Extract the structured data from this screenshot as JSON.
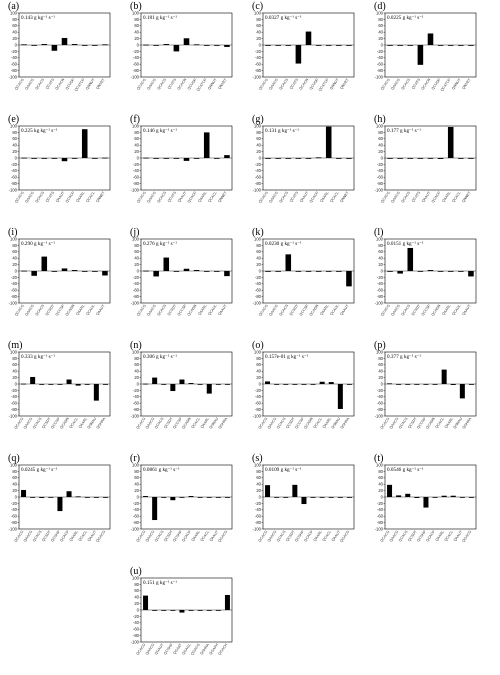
{
  "figure": {
    "y_ticks": [
      "100",
      "80",
      "60",
      "40",
      "20",
      "0",
      "-20",
      "-40",
      "-60",
      "-80",
      "-100"
    ],
    "ylim": [
      -100,
      100
    ]
  },
  "chart_data": [
    {
      "id": "a",
      "label": "(a)",
      "rate": "0.143 g kg⁻¹ s⁻¹",
      "type": "bar",
      "categories": [
        "QCACG",
        "QAACG",
        "QCACS",
        "QCATS",
        "QCACN",
        "QCVDP",
        "QCATCP",
        "QNNUT",
        "QNVET"
      ],
      "values": [
        2,
        0,
        3,
        -18,
        22,
        3,
        0,
        0,
        2
      ]
    },
    {
      "id": "b",
      "label": "(b)",
      "rate": "0.181 g kg⁻¹ s⁻¹",
      "type": "bar",
      "categories": [
        "QCACG",
        "QAACG",
        "QCACS",
        "QCATS",
        "QCACN",
        "QCVDP",
        "QCATCP",
        "QNNUT",
        "QNVET"
      ],
      "values": [
        1,
        0,
        3,
        -20,
        21,
        2,
        0,
        0,
        -6
      ]
    },
    {
      "id": "c",
      "label": "(c)",
      "rate": "0.0327 g kg⁻¹ s⁻¹",
      "type": "bar",
      "categories": [
        "QCACG",
        "QAACG",
        "QCACS",
        "QCATS",
        "QCACN",
        "QCVDP",
        "QCATCP",
        "QNNUT",
        "QNVET"
      ],
      "values": [
        0,
        0,
        0,
        -58,
        42,
        0,
        0,
        0,
        0
      ]
    },
    {
      "id": "d",
      "label": "(d)",
      "rate": "0.0225 g kg⁻¹ s⁻¹",
      "type": "bar",
      "categories": [
        "QCACG",
        "QAACG",
        "QCACS",
        "QCATS",
        "QCACN",
        "QCVDP",
        "QCATCP",
        "QNNUT",
        "QNVET"
      ],
      "values": [
        0,
        0,
        -2,
        -62,
        36,
        0,
        0,
        0,
        0
      ]
    },
    {
      "id": "e",
      "label": "(e)",
      "rate": "0.225 kg kg⁻¹ s⁻¹",
      "type": "bar",
      "categories": [
        "QCACG",
        "QAACG",
        "QCACS",
        "QCATS",
        "QAAUT",
        "QCACP",
        "QAARL",
        "QCACL",
        "QNNET"
      ],
      "values": [
        1,
        0,
        0,
        0,
        -10,
        0,
        90,
        0,
        1
      ]
    },
    {
      "id": "f",
      "label": "(f)",
      "rate": "0.146 g kg⁻¹ s⁻¹",
      "type": "bar",
      "categories": [
        "QCACG",
        "QAACG",
        "QCACS",
        "QCATS",
        "QAAUT",
        "QCACP",
        "QAARL",
        "QCACL",
        "QNNET"
      ],
      "values": [
        1,
        0,
        0,
        0,
        -9,
        0,
        80,
        0,
        9
      ]
    },
    {
      "id": "g",
      "label": "(g)",
      "rate": "0.131 g kg⁻¹ s⁻¹",
      "type": "bar",
      "categories": [
        "QCACG",
        "QAACG",
        "QCACS",
        "QCATS",
        "QAAUT",
        "QCACP",
        "QAARL",
        "QCACL",
        "QNNET"
      ],
      "values": [
        0,
        0,
        0,
        0,
        0,
        2,
        98,
        0,
        0
      ]
    },
    {
      "id": "h",
      "label": "(h)",
      "rate": "0.177 g kg⁻¹ s⁻¹",
      "type": "bar",
      "categories": [
        "QCACG",
        "QAACG",
        "QCACS",
        "QCATS",
        "QAAUT",
        "QCACP",
        "QAARL",
        "QCACL",
        "QNNET"
      ],
      "values": [
        0,
        0,
        0,
        0,
        0,
        -3,
        97,
        0,
        0
      ]
    },
    {
      "id": "i",
      "label": "(i)",
      "rate": "0.290 g kg⁻¹ s⁻¹",
      "type": "bar",
      "categories": [
        "QCACG",
        "QAACG",
        "QCACS",
        "QCSDT",
        "QCCSP",
        "QCADN",
        "QAARL",
        "QCAUL",
        "QAAUT"
      ],
      "values": [
        1,
        -15,
        45,
        0,
        8,
        3,
        -2,
        0,
        -14
      ]
    },
    {
      "id": "j",
      "label": "(j)",
      "rate": "0.276 g kg⁻¹ s⁻¹",
      "type": "bar",
      "categories": [
        "QCACG",
        "QAACG",
        "QCACS",
        "QCSDT",
        "QCCSP",
        "QCADN",
        "QAARL",
        "QCAUL",
        "QAAUT"
      ],
      "values": [
        1,
        -17,
        42,
        0,
        7,
        3,
        -2,
        0,
        -16
      ]
    },
    {
      "id": "k",
      "label": "(k)",
      "rate": "0.0230 g kg⁻¹ s⁻¹",
      "type": "bar",
      "categories": [
        "QCACG",
        "QAACG",
        "QCACS",
        "QCSDT",
        "QCCSP",
        "QCADN",
        "QAARL",
        "QCAUL",
        "QAAUT"
      ],
      "values": [
        0,
        0,
        52,
        0,
        0,
        0,
        0,
        0,
        -48
      ]
    },
    {
      "id": "l",
      "label": "(l)",
      "rate": "0.0151 g kg⁻¹ s⁻¹",
      "type": "bar",
      "categories": [
        "QCACG",
        "QAACG",
        "QCACS",
        "QCSDT",
        "QCCSP",
        "QCADN",
        "QAARL",
        "QCAUL",
        "QAAUT"
      ],
      "values": [
        0,
        -8,
        72,
        0,
        3,
        0,
        0,
        0,
        -17
      ]
    },
    {
      "id": "m",
      "label": "(m)",
      "rate": "0.333 g kg⁻¹ s⁻¹",
      "type": "bar",
      "categories": [
        "QCACG",
        "QAACG",
        "QCACS",
        "QCSDT",
        "QCCSP",
        "QCADN",
        "QCACL",
        "QAARL",
        "QSNAU",
        "QSHRA"
      ],
      "values": [
        1,
        22,
        0,
        0,
        0,
        14,
        -5,
        -2,
        -52,
        0
      ]
    },
    {
      "id": "n",
      "label": "(n)",
      "rate": "0.306 g kg⁻¹ s⁻¹",
      "type": "bar",
      "categories": [
        "QCACG",
        "QAACG",
        "QCACS",
        "QCSDT",
        "QCCSP",
        "QCADN",
        "QCACL",
        "QAARL",
        "QSNAU",
        "QSHRA"
      ],
      "values": [
        1,
        20,
        0,
        -22,
        14,
        3,
        -2,
        -30,
        0,
        0
      ]
    },
    {
      "id": "o",
      "label": "(o)",
      "rate": "0.157e-01 g kg⁻¹ s⁻¹",
      "type": "bar",
      "categories": [
        "QCACG",
        "QAACG",
        "QCACS",
        "QCSDT",
        "QCCSP",
        "QCADN",
        "QCACL",
        "QAARL",
        "QSNAU",
        "QSHRA"
      ],
      "values": [
        8,
        0,
        0,
        0,
        0,
        0,
        7,
        6,
        -78,
        0
      ]
    },
    {
      "id": "p",
      "label": "(p)",
      "rate": "0.377 g kg⁻¹ s⁻¹",
      "type": "bar",
      "categories": [
        "QCACG",
        "QAACG",
        "QCACS",
        "QCSDT",
        "QCCSP",
        "QCADN",
        "QCACL",
        "QAARL",
        "QSNAU",
        "QSHRA"
      ],
      "values": [
        2,
        0,
        0,
        0,
        0,
        0,
        45,
        -3,
        -45,
        0
      ]
    },
    {
      "id": "q",
      "label": "(q)",
      "rate": "0.0245 g kg⁻¹ s⁻¹",
      "type": "bar",
      "categories": [
        "QCACG",
        "QAACG",
        "QCACS",
        "QCSDT",
        "QCSHP",
        "QCACP",
        "QAARL",
        "QCACL",
        "QAAUT",
        "QGACG"
      ],
      "values": [
        22,
        0,
        -3,
        0,
        -44,
        18,
        2,
        0,
        0,
        0
      ]
    },
    {
      "id": "r",
      "label": "(r)",
      "rate": "0.0861 g kg⁻¹ s⁻¹",
      "type": "bar",
      "categories": [
        "QCACG",
        "QAACG",
        "QCACS",
        "QCSDT",
        "QCSHP",
        "QCACP",
        "QAARL",
        "QCACL",
        "QAAUT",
        "QGACG"
      ],
      "values": [
        3,
        -72,
        0,
        -10,
        0,
        3,
        0,
        0,
        0,
        0
      ]
    },
    {
      "id": "s",
      "label": "(s)",
      "rate": "0.0109 g kg⁻¹ s⁻¹",
      "type": "bar",
      "categories": [
        "QCACG",
        "QAACG",
        "QCACS",
        "QCSDT",
        "QCSHP",
        "QCACP",
        "QAARL",
        "QCACL",
        "QAAUT",
        "QGACG"
      ],
      "values": [
        37,
        0,
        0,
        38,
        -22,
        0,
        0,
        0,
        0,
        0
      ]
    },
    {
      "id": "t",
      "label": "(t)",
      "rate": "0.0546 g kg⁻¹ s⁻¹",
      "type": "bar",
      "categories": [
        "QCACG",
        "QAACG",
        "QCACS",
        "QCSDT",
        "QCSHP",
        "QCACP",
        "QAARL",
        "QCACL",
        "QAAUT",
        "QGACG"
      ],
      "values": [
        38,
        5,
        10,
        -3,
        -33,
        0,
        4,
        4,
        0,
        0
      ]
    },
    {
      "id": "u",
      "label": "(u)",
      "rate": "0.151 g kg⁻¹ s⁻¹",
      "type": "bar",
      "categories": [
        "QCACG",
        "QAACG",
        "QGAUT",
        "QCSHP",
        "QGAAT",
        "QGAGL",
        "QGACG",
        "QSHRA",
        "QGAFH",
        "QGACH"
      ],
      "values": [
        45,
        0,
        0,
        0,
        -8,
        0,
        0,
        0,
        0,
        47
      ]
    }
  ]
}
